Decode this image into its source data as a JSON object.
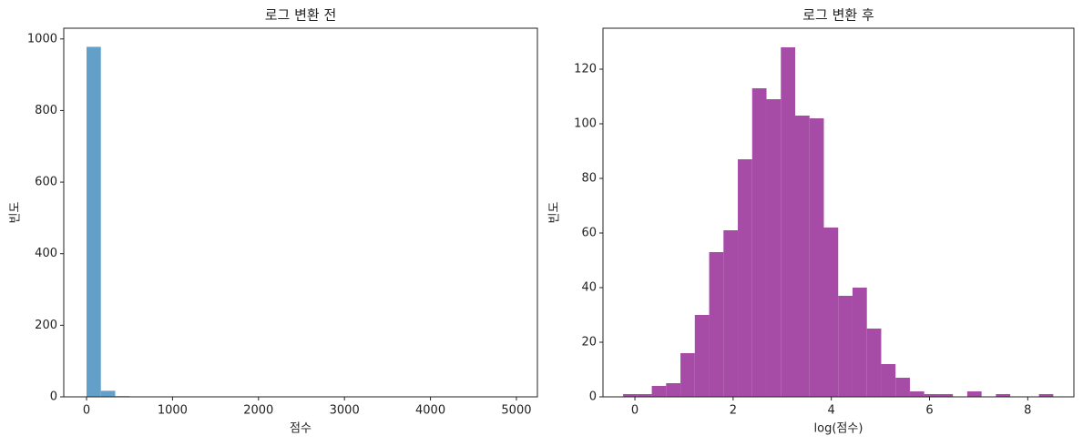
{
  "chart_data": [
    {
      "type": "histogram",
      "title": "로그 변환 전",
      "xlabel": "점수",
      "ylabel": "빈도",
      "color": "#62a0ca",
      "bins": [
        0,
        166.67,
        333.33,
        500,
        666.67,
        833.33,
        1000,
        1166.67,
        1333.33,
        1500,
        1666.67,
        1833.33,
        2000,
        2166.67,
        2333.33,
        2500,
        2666.67,
        2833.33,
        3000,
        3166.67,
        3333.33,
        3500,
        3666.67,
        3833.33,
        4000,
        4166.67,
        4333.33,
        4500,
        4666.67,
        4833.33,
        5000
      ],
      "values": [
        978,
        17,
        2,
        0,
        0,
        1,
        0,
        0,
        0,
        0,
        0,
        1,
        0,
        0,
        0,
        0,
        0,
        0,
        0,
        0,
        0,
        0,
        0,
        0,
        0,
        0,
        0,
        0,
        0,
        1
      ],
      "xlim": [
        -265,
        5244
      ],
      "xticks": [
        0,
        1000,
        2000,
        3000,
        4000,
        5000
      ],
      "ylim": [
        0,
        1030
      ],
      "yticks": [
        0,
        200,
        400,
        600,
        800,
        1000
      ]
    },
    {
      "type": "histogram",
      "title": "로그 변환 후",
      "xlabel": "log(점수)",
      "ylabel": "빈도",
      "color": "#a64ca6",
      "bins": [
        -0.24,
        0.052,
        0.344,
        0.636,
        0.928,
        1.22,
        1.512,
        1.804,
        2.096,
        2.388,
        2.68,
        2.972,
        3.264,
        3.556,
        3.848,
        4.14,
        4.432,
        4.724,
        5.016,
        5.308,
        5.6,
        5.892,
        6.184,
        6.476,
        6.768,
        7.06,
        7.352,
        7.644,
        7.936,
        8.228,
        8.52
      ],
      "values": [
        1,
        1,
        4,
        5,
        16,
        30,
        53,
        61,
        87,
        113,
        109,
        128,
        103,
        102,
        62,
        37,
        40,
        25,
        12,
        7,
        2,
        1,
        1,
        0,
        2,
        0,
        1,
        0,
        0,
        1
      ],
      "xlim": [
        -0.65,
        8.94
      ],
      "xticks": [
        0,
        2,
        4,
        6,
        8
      ],
      "ylim": [
        0,
        135
      ],
      "yticks": [
        0,
        20,
        40,
        60,
        80,
        100,
        120
      ]
    }
  ]
}
